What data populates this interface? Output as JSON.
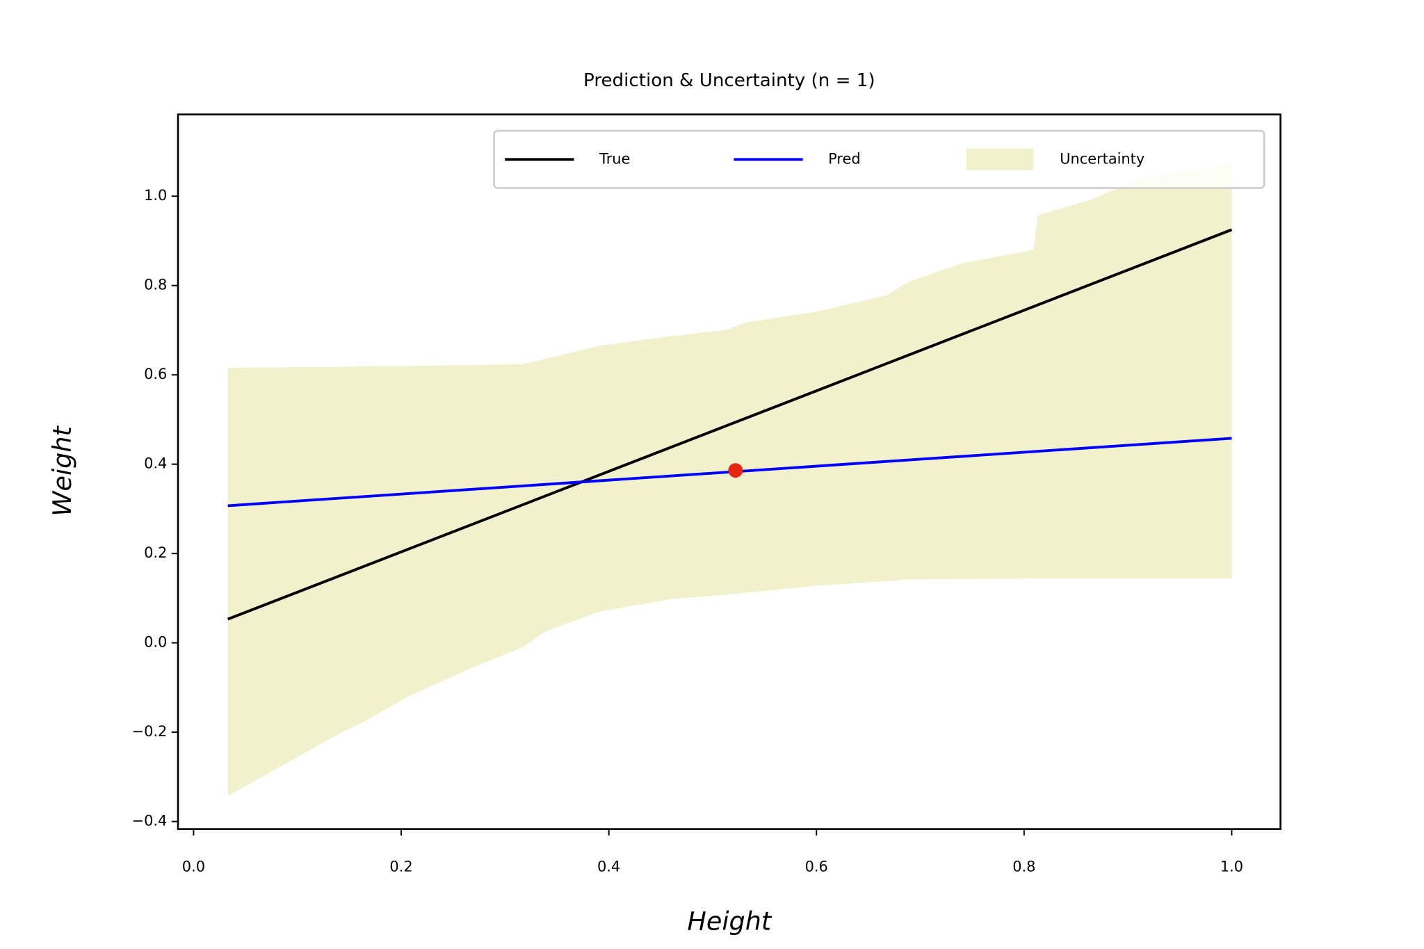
{
  "chart_data": {
    "type": "line",
    "title": "Prediction & Uncertainty (n = 1)",
    "x_label": "Height",
    "y_label": "Weight",
    "xlim": [
      -0.015,
      1.047
    ],
    "ylim": [
      -0.417,
      1.183
    ],
    "xticks": [
      {
        "value": 0,
        "label": "0.0"
      },
      {
        "value": 0.2,
        "label": "0.2"
      },
      {
        "value": 0.4,
        "label": "0.4"
      },
      {
        "value": 0.6,
        "label": "0.6"
      },
      {
        "value": 0.8,
        "label": "0.8"
      },
      {
        "value": 1,
        "label": "1.0"
      }
    ],
    "yticks": [
      {
        "value": -0.4,
        "label": "−0.4"
      },
      {
        "value": -0.2,
        "label": "−0.2"
      },
      {
        "value": 0,
        "label": "0.0"
      },
      {
        "value": 0.2,
        "label": "0.2"
      },
      {
        "value": 0.4,
        "label": "0.4"
      },
      {
        "value": 0.6,
        "label": "0.6"
      },
      {
        "value": 0.8,
        "label": "0.8"
      },
      {
        "value": 1,
        "label": "1.0"
      }
    ],
    "legend": "upper right",
    "series": [
      {
        "name": "True",
        "color": "#000000",
        "x": [
          0.033,
          1.0
        ],
        "values": [
          0.053,
          0.925
        ]
      },
      {
        "name": "Pred",
        "color": "#0000ff",
        "x": [
          0.033,
          1.0
        ],
        "values": [
          0.307,
          0.458
        ]
      }
    ],
    "band": {
      "name": "Uncertainty",
      "color": "#f1f2cd",
      "x": [
        0.033,
        0.142,
        0.164,
        0.207,
        0.269,
        0.317,
        0.339,
        0.391,
        0.461,
        0.514,
        0.531,
        0.601,
        0.667,
        0.689,
        0.741,
        0.809,
        0.813,
        0.864,
        0.916,
        1.0
      ],
      "upper": [
        0.616,
        0.618,
        0.619,
        0.62,
        0.622,
        0.624,
        0.636,
        0.665,
        0.687,
        0.701,
        0.717,
        0.742,
        0.778,
        0.809,
        0.85,
        0.88,
        0.957,
        0.992,
        1.043,
        1.073
      ],
      "lower": [
        -0.343,
        -0.201,
        -0.177,
        -0.12,
        -0.055,
        -0.01,
        0.025,
        0.07,
        0.098,
        0.108,
        0.112,
        0.128,
        0.138,
        0.142,
        0.143,
        0.144,
        0.144,
        0.144,
        0.144,
        0.144
      ]
    },
    "points": {
      "color": "#e8250f",
      "x": [
        0.522
      ],
      "values": [
        0.386
      ]
    }
  }
}
